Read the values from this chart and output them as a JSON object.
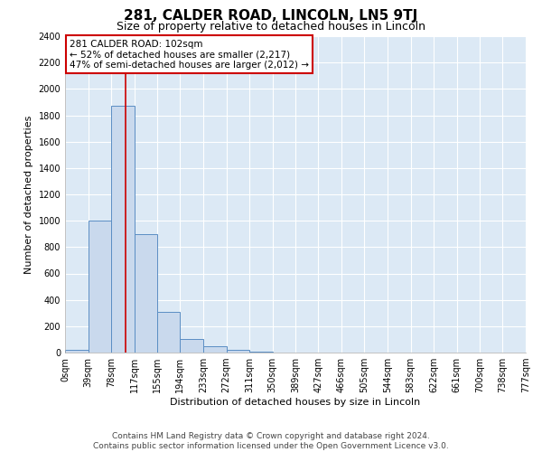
{
  "title": "281, CALDER ROAD, LINCOLN, LN5 9TJ",
  "subtitle": "Size of property relative to detached houses in Lincoln",
  "xlabel": "Distribution of detached houses by size in Lincoln",
  "ylabel": "Number of detached properties",
  "bar_color": "#c9d9ed",
  "bar_edge_color": "#5b8ec4",
  "background_color": "#dce9f5",
  "grid_color": "#ffffff",
  "bin_edges": [
    0,
    39,
    78,
    117,
    155,
    194,
    233,
    272,
    311,
    350,
    389,
    427,
    466,
    505,
    544,
    583,
    622,
    661,
    700,
    738,
    777
  ],
  "bin_labels": [
    "0sqm",
    "39sqm",
    "78sqm",
    "117sqm",
    "155sqm",
    "194sqm",
    "233sqm",
    "272sqm",
    "311sqm",
    "350sqm",
    "389sqm",
    "427sqm",
    "466sqm",
    "505sqm",
    "544sqm",
    "583sqm",
    "622sqm",
    "661sqm",
    "700sqm",
    "738sqm",
    "777sqm"
  ],
  "bar_heights": [
    20,
    1000,
    1870,
    900,
    310,
    100,
    45,
    20,
    10,
    0,
    0,
    0,
    0,
    0,
    0,
    0,
    0,
    0,
    0,
    0
  ],
  "vline_x": 102,
  "vline_color": "#cc0000",
  "annotation_title": "281 CALDER ROAD: 102sqm",
  "annotation_line1": "← 52% of detached houses are smaller (2,217)",
  "annotation_line2": "47% of semi-detached houses are larger (2,012) →",
  "annotation_box_color": "#ffffff",
  "annotation_box_edge": "#cc0000",
  "ylim": [
    0,
    2400
  ],
  "yticks": [
    0,
    200,
    400,
    600,
    800,
    1000,
    1200,
    1400,
    1600,
    1800,
    2000,
    2200,
    2400
  ],
  "footer1": "Contains HM Land Registry data © Crown copyright and database right 2024.",
  "footer2": "Contains public sector information licensed under the Open Government Licence v3.0.",
  "title_fontsize": 11,
  "subtitle_fontsize": 9,
  "axis_label_fontsize": 8,
  "tick_fontsize": 7,
  "annotation_fontsize": 7.5,
  "footer_fontsize": 6.5
}
